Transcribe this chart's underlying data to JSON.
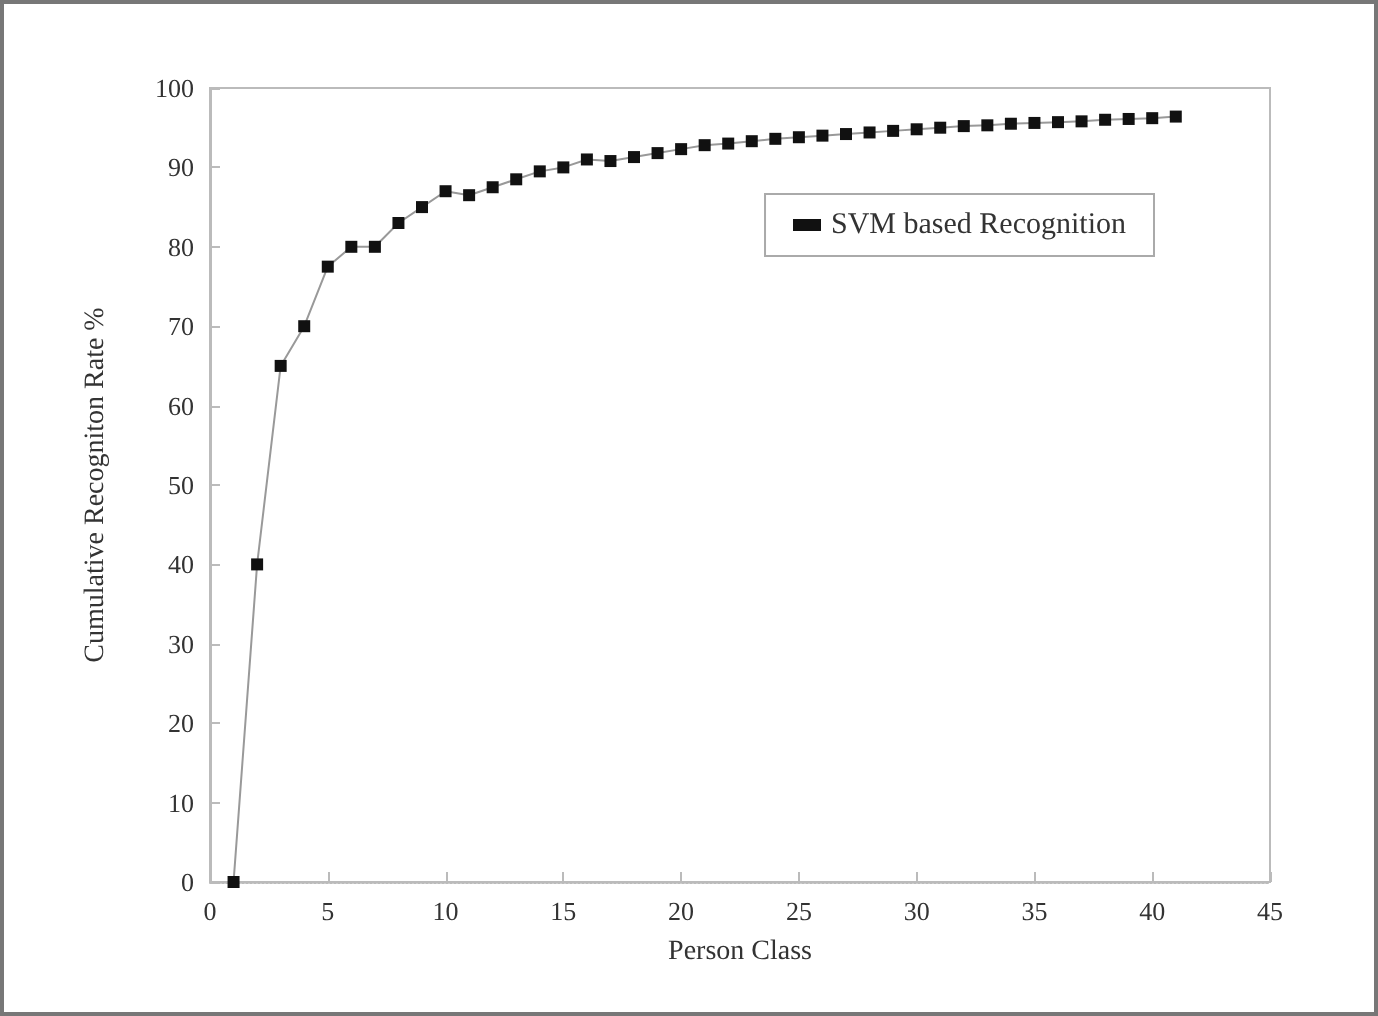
{
  "chart_data": {
    "type": "line",
    "xlabel": "Person Class",
    "ylabel": "Cumulative Recogniton Rate %",
    "x": [
      1,
      2,
      3,
      4,
      5,
      6,
      7,
      8,
      9,
      10,
      11,
      12,
      13,
      14,
      15,
      16,
      17,
      18,
      19,
      20,
      21,
      22,
      23,
      24,
      25,
      26,
      27,
      28,
      29,
      30,
      31,
      32,
      33,
      34,
      35,
      36,
      37,
      38,
      39,
      40,
      41
    ],
    "series": [
      {
        "name": "SVM based Recognition",
        "color": "#111111",
        "values": [
          0,
          40,
          65,
          70,
          77.5,
          80,
          80,
          83,
          85,
          87,
          86.5,
          87.5,
          88.5,
          89.5,
          90,
          91,
          90.8,
          91.3,
          91.8,
          92.3,
          92.8,
          93,
          93.3,
          93.6,
          93.8,
          94,
          94.2,
          94.4,
          94.6,
          94.8,
          95,
          95.2,
          95.3,
          95.5,
          95.6,
          95.7,
          95.8,
          96,
          96.1,
          96.2,
          96.4
        ]
      }
    ],
    "xlim": [
      0,
      45
    ],
    "xticks": [
      0,
      5,
      10,
      15,
      20,
      25,
      30,
      35,
      40,
      45
    ],
    "ylim": [
      0,
      100
    ],
    "yticks": [
      0,
      10,
      20,
      30,
      40,
      50,
      60,
      70,
      80,
      90,
      100
    ],
    "marker": "square",
    "grid": false,
    "legend": "top right"
  }
}
